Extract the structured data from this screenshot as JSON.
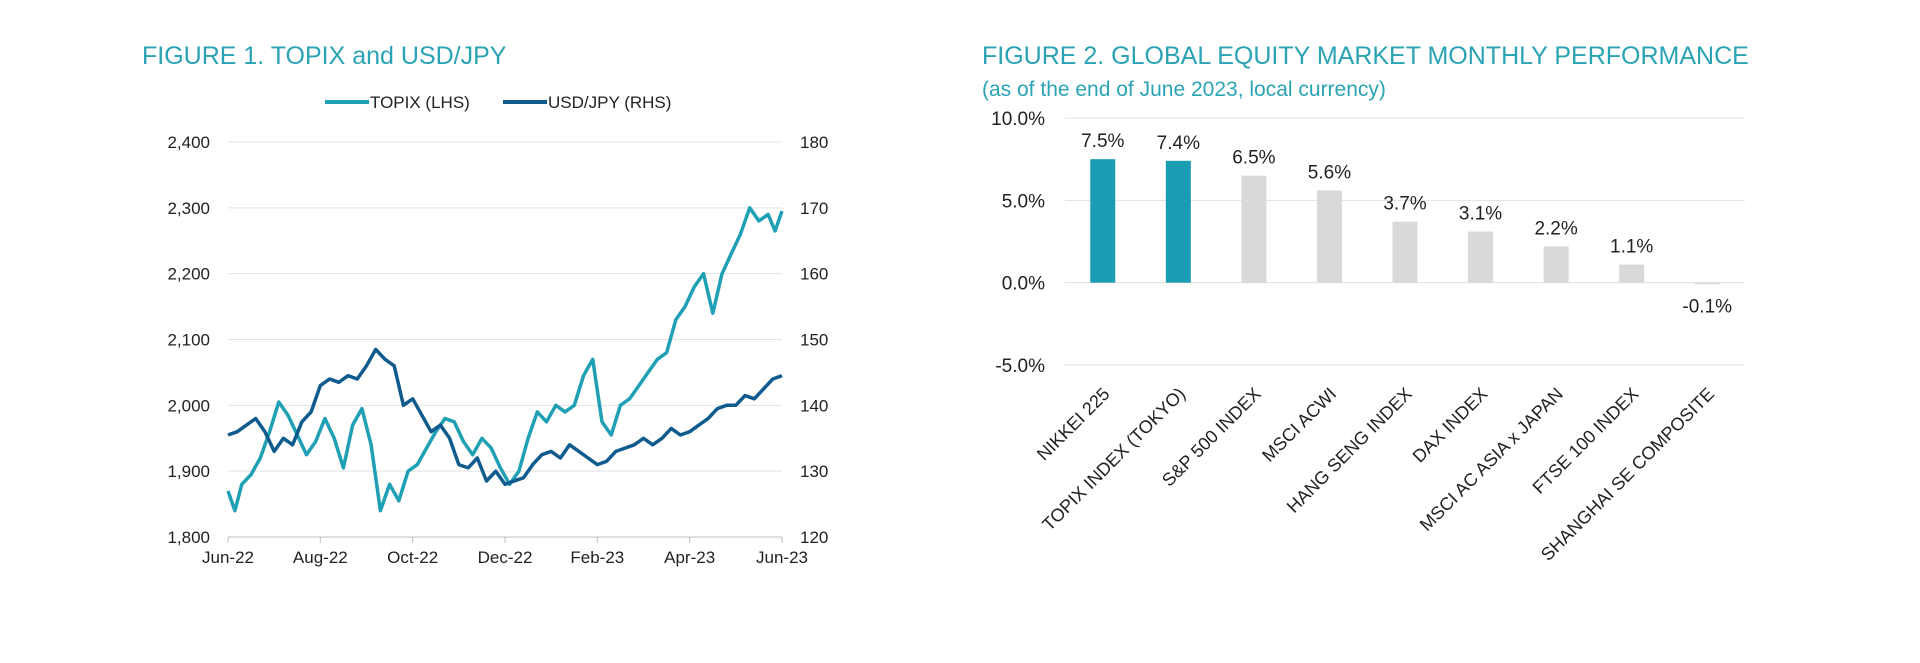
{
  "figure1": {
    "title": "FIGURE 1. TOPIX and USD/JPY",
    "chart_data": {
      "type": "line",
      "title": "FIGURE 1. TOPIX and USD/JPY",
      "x_tick_labels": [
        "Jun-22",
        "Aug-22",
        "Oct-22",
        "Dec-22",
        "Feb-23",
        "Apr-23",
        "Jun-23"
      ],
      "left_axis": {
        "ylim": [
          1800,
          2400
        ],
        "ticks": [
          1800,
          1900,
          2000,
          2100,
          2200,
          2300,
          2400
        ],
        "tick_labels": [
          "1,800",
          "1,900",
          "2,000",
          "2,100",
          "2,200",
          "2,300",
          "2,400"
        ]
      },
      "right_axis": {
        "ylim": [
          120,
          180
        ],
        "ticks": [
          120,
          130,
          140,
          150,
          160,
          170,
          180
        ],
        "tick_labels": [
          "120",
          "130",
          "140",
          "150",
          "160",
          "170",
          "180"
        ]
      },
      "legend_position": "top",
      "series": [
        {
          "name": "TOPIX (LHS)",
          "axis": "left",
          "color": "#1fa0b4",
          "x": [
            0,
            0.15,
            0.3,
            0.5,
            0.7,
            0.9,
            1.1,
            1.3,
            1.5,
            1.7,
            1.9,
            2.1,
            2.3,
            2.5,
            2.7,
            2.9,
            3.1,
            3.3,
            3.5,
            3.7,
            3.9,
            4.1,
            4.3,
            4.5,
            4.7,
            4.9,
            5.1,
            5.3,
            5.5,
            5.7,
            5.9,
            6.1,
            6.3,
            6.5,
            6.7,
            6.9,
            7.1,
            7.3,
            7.5,
            7.7,
            7.9,
            8.1,
            8.3,
            8.5,
            8.7,
            8.9,
            9.1,
            9.3,
            9.5,
            9.7,
            9.9,
            10.1,
            10.3,
            10.5,
            10.7,
            10.9,
            11.1,
            11.3,
            11.5,
            11.7,
            11.85,
            12.0
          ],
          "values": [
            1870,
            1840,
            1880,
            1895,
            1920,
            1960,
            2005,
            1985,
            1955,
            1925,
            1945,
            1980,
            1950,
            1905,
            1970,
            1995,
            1940,
            1840,
            1880,
            1855,
            1900,
            1910,
            1935,
            1960,
            1980,
            1975,
            1945,
            1925,
            1950,
            1935,
            1905,
            1880,
            1900,
            1950,
            1990,
            1975,
            2000,
            1990,
            2000,
            2045,
            2070,
            1975,
            1955,
            2000,
            2010,
            2030,
            2050,
            2070,
            2080,
            2130,
            2150,
            2180,
            2200,
            2140,
            2200,
            2230,
            2260,
            2300,
            2280,
            2290,
            2265,
            2295
          ]
        },
        {
          "name": "USD/JPY (RHS)",
          "axis": "right",
          "color": "#0f5b8e",
          "x": [
            0,
            0.2,
            0.4,
            0.6,
            0.8,
            1.0,
            1.2,
            1.4,
            1.6,
            1.8,
            2.0,
            2.2,
            2.4,
            2.6,
            2.8,
            3.0,
            3.2,
            3.4,
            3.6,
            3.8,
            4.0,
            4.2,
            4.4,
            4.6,
            4.8,
            5.0,
            5.2,
            5.4,
            5.6,
            5.8,
            6.0,
            6.2,
            6.4,
            6.6,
            6.8,
            7.0,
            7.2,
            7.4,
            7.6,
            7.8,
            8.0,
            8.2,
            8.4,
            8.6,
            8.8,
            9.0,
            9.2,
            9.4,
            9.6,
            9.8,
            10.0,
            10.2,
            10.4,
            10.6,
            10.8,
            11.0,
            11.2,
            11.4,
            11.6,
            11.8,
            12.0
          ],
          "values": [
            135.5,
            136,
            137,
            138,
            136,
            133,
            135,
            134,
            137.5,
            139,
            143,
            144,
            143.5,
            144.5,
            144,
            146,
            148.5,
            147,
            146,
            140,
            141,
            138.5,
            136,
            137,
            135,
            131,
            130.5,
            132,
            128.5,
            130,
            128,
            128.5,
            129,
            131,
            132.5,
            133,
            132,
            134,
            133,
            132,
            131,
            131.5,
            133,
            133.5,
            134,
            135,
            134,
            135,
            136.5,
            135.5,
            136,
            137,
            138,
            139.5,
            140,
            140,
            141.5,
            141,
            142.5,
            144,
            144.5
          ]
        }
      ]
    }
  },
  "figure2": {
    "title": "FIGURE 2. GLOBAL EQUITY MARKET MONTHLY PERFORMANCE",
    "subtitle": "(as of the end of June 2023, local currency)",
    "chart_data": {
      "type": "bar",
      "title": "FIGURE 2. GLOBAL EQUITY MARKET MONTHLY PERFORMANCE",
      "subtitle": "(as of the end of June 2023, local currency)",
      "categories": [
        "NIKKEI 225",
        "TOPIX INDEX (TOKYO)",
        "S&P 500 INDEX",
        "MSCI ACWI",
        "HANG SENG INDEX",
        "DAX INDEX",
        "MSCI AC ASIA x JAPAN",
        "FTSE 100 INDEX",
        "SHANGHAI SE COMPOSITE"
      ],
      "values": [
        7.5,
        7.4,
        6.5,
        5.6,
        3.7,
        3.1,
        2.2,
        1.1,
        -0.1
      ],
      "data_labels": [
        "7.5%",
        "7.4%",
        "6.5%",
        "5.6%",
        "3.7%",
        "3.1%",
        "2.2%",
        "1.1%",
        "-0.1%"
      ],
      "colors": [
        "#1a9db3",
        "#1a9db3",
        "#d9d9d9",
        "#d9d9d9",
        "#d9d9d9",
        "#d9d9d9",
        "#d9d9d9",
        "#d9d9d9",
        "#d9d9d9"
      ],
      "ylim": [
        -5,
        10
      ],
      "ticks": [
        -5,
        0,
        5,
        10
      ],
      "tick_labels": [
        "-5.0%",
        "0.0%",
        "5.0%",
        "10.0%"
      ]
    }
  }
}
